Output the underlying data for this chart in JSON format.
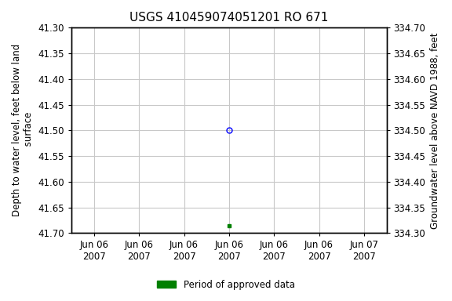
{
  "title": "USGS 410459074051201 RO 671",
  "ylabel_left": "Depth to water level, feet below land\n surface",
  "ylabel_right": "Groundwater level above NAVD 1988, feet",
  "ylim_left": [
    41.3,
    41.7
  ],
  "ylim_right_top": 334.7,
  "ylim_right_bottom": 334.3,
  "yticks_left": [
    41.3,
    41.35,
    41.4,
    41.45,
    41.5,
    41.55,
    41.6,
    41.65,
    41.7
  ],
  "yticks_right": [
    334.7,
    334.65,
    334.6,
    334.55,
    334.5,
    334.45,
    334.4,
    334.35,
    334.3
  ],
  "blue_point_x": 3.5,
  "blue_point_y": 41.5,
  "green_point_x": 3.5,
  "green_point_y": 41.685,
  "xmin": 0.0,
  "xmax": 7.0,
  "xtick_positions": [
    0.5,
    1.5,
    2.5,
    3.5,
    4.5,
    5.5,
    6.5
  ],
  "xtick_labels": [
    "Jun 06\n2007",
    "Jun 06\n2007",
    "Jun 06\n2007",
    "Jun 06\n2007",
    "Jun 06\n2007",
    "Jun 06\n2007",
    "Jun 07\n2007"
  ],
  "background_color": "#ffffff",
  "grid_color": "#c8c8c8",
  "title_fontsize": 11,
  "axis_fontsize": 8.5,
  "tick_fontsize": 8.5,
  "legend_label": "Period of approved data",
  "font_family": "Courier New"
}
